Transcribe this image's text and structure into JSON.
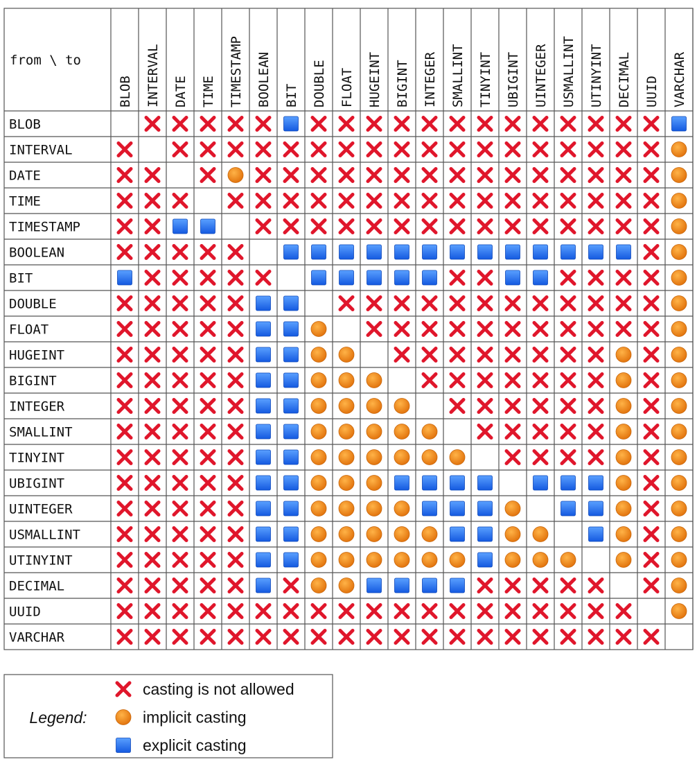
{
  "table": {
    "corner": "from \\ to",
    "columns": [
      "BLOB",
      "INTERVAL",
      "DATE",
      "TIME",
      "TIMESTAMP",
      "BOOLEAN",
      "BIT",
      "DOUBLE",
      "FLOAT",
      "HUGEINT",
      "BIGINT",
      "INTEGER",
      "SMALLINT",
      "TINYINT",
      "UBIGINT",
      "UINTEGER",
      "USMALLINT",
      "UTINYINT",
      "DECIMAL",
      "UUID",
      "VARCHAR"
    ],
    "rows": [
      {
        "label": "BLOB",
        "cells": [
          null,
          "x",
          "x",
          "x",
          "x",
          "x",
          "s",
          "x",
          "x",
          "x",
          "x",
          "x",
          "x",
          "x",
          "x",
          "x",
          "x",
          "x",
          "x",
          "x",
          "s"
        ]
      },
      {
        "label": "INTERVAL",
        "cells": [
          "x",
          null,
          "x",
          "x",
          "x",
          "x",
          "x",
          "x",
          "x",
          "x",
          "x",
          "x",
          "x",
          "x",
          "x",
          "x",
          "x",
          "x",
          "x",
          "x",
          "o"
        ]
      },
      {
        "label": "DATE",
        "cells": [
          "x",
          "x",
          null,
          "x",
          "o",
          "x",
          "x",
          "x",
          "x",
          "x",
          "x",
          "x",
          "x",
          "x",
          "x",
          "x",
          "x",
          "x",
          "x",
          "x",
          "o"
        ]
      },
      {
        "label": "TIME",
        "cells": [
          "x",
          "x",
          "x",
          null,
          "x",
          "x",
          "x",
          "x",
          "x",
          "x",
          "x",
          "x",
          "x",
          "x",
          "x",
          "x",
          "x",
          "x",
          "x",
          "x",
          "o"
        ]
      },
      {
        "label": "TIMESTAMP",
        "cells": [
          "x",
          "x",
          "s",
          "s",
          null,
          "x",
          "x",
          "x",
          "x",
          "x",
          "x",
          "x",
          "x",
          "x",
          "x",
          "x",
          "x",
          "x",
          "x",
          "x",
          "o"
        ]
      },
      {
        "label": "BOOLEAN",
        "cells": [
          "x",
          "x",
          "x",
          "x",
          "x",
          null,
          "s",
          "s",
          "s",
          "s",
          "s",
          "s",
          "s",
          "s",
          "s",
          "s",
          "s",
          "s",
          "s",
          "x",
          "o"
        ]
      },
      {
        "label": "BIT",
        "cells": [
          "s",
          "x",
          "x",
          "x",
          "x",
          "x",
          null,
          "s",
          "s",
          "s",
          "s",
          "s",
          "x",
          "x",
          "s",
          "s",
          "x",
          "x",
          "x",
          "x",
          "o"
        ]
      },
      {
        "label": "DOUBLE",
        "cells": [
          "x",
          "x",
          "x",
          "x",
          "x",
          "s",
          "s",
          null,
          "x",
          "x",
          "x",
          "x",
          "x",
          "x",
          "x",
          "x",
          "x",
          "x",
          "x",
          "x",
          "o"
        ]
      },
      {
        "label": "FLOAT",
        "cells": [
          "x",
          "x",
          "x",
          "x",
          "x",
          "s",
          "s",
          "o",
          null,
          "x",
          "x",
          "x",
          "x",
          "x",
          "x",
          "x",
          "x",
          "x",
          "x",
          "x",
          "o"
        ]
      },
      {
        "label": "HUGEINT",
        "cells": [
          "x",
          "x",
          "x",
          "x",
          "x",
          "s",
          "s",
          "o",
          "o",
          null,
          "x",
          "x",
          "x",
          "x",
          "x",
          "x",
          "x",
          "x",
          "o",
          "x",
          "o"
        ]
      },
      {
        "label": "BIGINT",
        "cells": [
          "x",
          "x",
          "x",
          "x",
          "x",
          "s",
          "s",
          "o",
          "o",
          "o",
          null,
          "x",
          "x",
          "x",
          "x",
          "x",
          "x",
          "x",
          "o",
          "x",
          "o"
        ]
      },
      {
        "label": "INTEGER",
        "cells": [
          "x",
          "x",
          "x",
          "x",
          "x",
          "s",
          "s",
          "o",
          "o",
          "o",
          "o",
          null,
          "x",
          "x",
          "x",
          "x",
          "x",
          "x",
          "o",
          "x",
          "o"
        ]
      },
      {
        "label": "SMALLINT",
        "cells": [
          "x",
          "x",
          "x",
          "x",
          "x",
          "s",
          "s",
          "o",
          "o",
          "o",
          "o",
          "o",
          null,
          "x",
          "x",
          "x",
          "x",
          "x",
          "o",
          "x",
          "o"
        ]
      },
      {
        "label": "TINYINT",
        "cells": [
          "x",
          "x",
          "x",
          "x",
          "x",
          "s",
          "s",
          "o",
          "o",
          "o",
          "o",
          "o",
          "o",
          null,
          "x",
          "x",
          "x",
          "x",
          "o",
          "x",
          "o"
        ]
      },
      {
        "label": "UBIGINT",
        "cells": [
          "x",
          "x",
          "x",
          "x",
          "x",
          "s",
          "s",
          "o",
          "o",
          "o",
          "s",
          "s",
          "s",
          "s",
          null,
          "s",
          "s",
          "s",
          "o",
          "x",
          "o"
        ]
      },
      {
        "label": "UINTEGER",
        "cells": [
          "x",
          "x",
          "x",
          "x",
          "x",
          "s",
          "s",
          "o",
          "o",
          "o",
          "o",
          "s",
          "s",
          "s",
          "o",
          null,
          "s",
          "s",
          "o",
          "x",
          "o"
        ]
      },
      {
        "label": "USMALLINT",
        "cells": [
          "x",
          "x",
          "x",
          "x",
          "x",
          "s",
          "s",
          "o",
          "o",
          "o",
          "o",
          "o",
          "s",
          "s",
          "o",
          "o",
          null,
          "s",
          "o",
          "x",
          "o"
        ]
      },
      {
        "label": "UTINYINT",
        "cells": [
          "x",
          "x",
          "x",
          "x",
          "x",
          "s",
          "s",
          "o",
          "o",
          "o",
          "o",
          "o",
          "o",
          "s",
          "o",
          "o",
          "o",
          null,
          "o",
          "x",
          "o"
        ]
      },
      {
        "label": "DECIMAL",
        "cells": [
          "x",
          "x",
          "x",
          "x",
          "x",
          "s",
          "x",
          "o",
          "o",
          "s",
          "s",
          "s",
          "s",
          "x",
          "x",
          "x",
          "x",
          "x",
          null,
          "x",
          "o"
        ]
      },
      {
        "label": "UUID",
        "cells": [
          "x",
          "x",
          "x",
          "x",
          "x",
          "x",
          "x",
          "x",
          "x",
          "x",
          "x",
          "x",
          "x",
          "x",
          "x",
          "x",
          "x",
          "x",
          "x",
          null,
          "o"
        ]
      },
      {
        "label": "VARCHAR",
        "cells": [
          "x",
          "x",
          "x",
          "x",
          "x",
          "x",
          "x",
          "x",
          "x",
          "x",
          "x",
          "x",
          "x",
          "x",
          "x",
          "x",
          "x",
          "x",
          "x",
          "x",
          null
        ]
      }
    ]
  },
  "legend": {
    "title": "Legend:",
    "items": [
      {
        "symbol": "x",
        "label": "casting is not allowed"
      },
      {
        "symbol": "o",
        "label": "implicit casting"
      },
      {
        "symbol": "s",
        "label": "explicit casting"
      }
    ]
  }
}
